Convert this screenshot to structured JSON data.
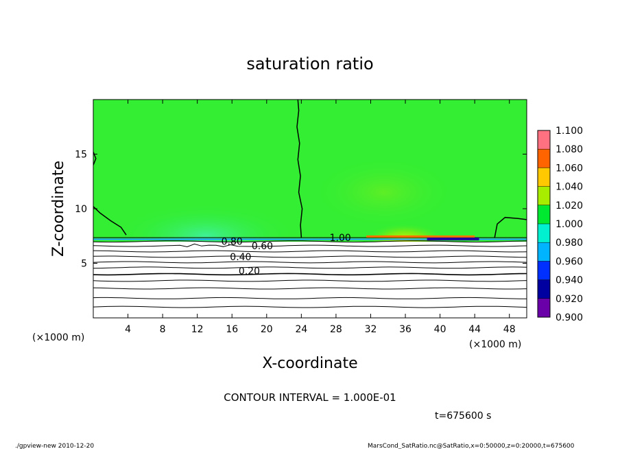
{
  "chart_data": {
    "type": "contour",
    "title": "saturation ratio",
    "xlabel": "X-coordinate",
    "ylabel": "Z-coordinate",
    "x_unit_label": "(×1000 m)",
    "z_unit_label": "(×1000 m)",
    "xlim": [
      0,
      50
    ],
    "ylim": [
      0,
      20
    ],
    "x_ticks": [
      4,
      8,
      12,
      16,
      20,
      24,
      28,
      32,
      36,
      40,
      44,
      48
    ],
    "y_ticks": [
      5,
      10,
      15
    ],
    "colorbar": {
      "levels": [
        0.9,
        0.92,
        0.94,
        0.96,
        0.98,
        1.0,
        1.02,
        1.04,
        1.06,
        1.08,
        1.1
      ],
      "labels": [
        "0.900",
        "0.920",
        "0.940",
        "0.960",
        "0.980",
        "1.000",
        "1.020",
        "1.040",
        "1.060",
        "1.080",
        "1.100"
      ],
      "colors": [
        "#6a00a8",
        "#0000a0",
        "#0030ff",
        "#00b4ff",
        "#00f0d0",
        "#00e830",
        "#a8ec00",
        "#ffc800",
        "#ff6400",
        "#e80000",
        "#ff7080"
      ]
    },
    "fill_color_default": "#33ee33",
    "below_range_color": "#ffffff",
    "contour_labels": [
      {
        "text": "0.20",
        "x": 18,
        "z": 4.3
      },
      {
        "text": "0.40",
        "x": 17,
        "z": 5.6
      },
      {
        "text": "0.60",
        "x": 19.5,
        "z": 6.6
      },
      {
        "text": "0.80",
        "x": 16,
        "z": 7.0
      },
      {
        "text": "1.00",
        "x": 28.5,
        "z": 7.35
      }
    ],
    "contour_interval_text": "CONTOUR INTERVAL = 1.000E-01",
    "time_text": "t=675600 s"
  },
  "footer": {
    "left": "./gpview-new  2010-12-20",
    "right": "MarsCond_SatRatio.nc@SatRatio,x=0:50000,z=0:20000,t=675600"
  }
}
